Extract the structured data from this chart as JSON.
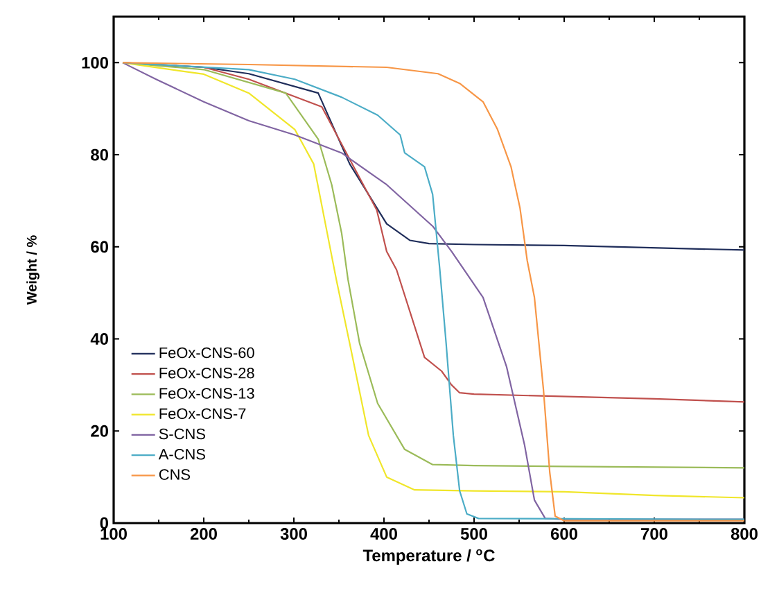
{
  "chart_data": {
    "type": "line",
    "xlabel": "Temperature / $^{o}$C",
    "ylabel": "Weight  / %",
    "xlim": [
      100,
      800
    ],
    "ylim": [
      0,
      110
    ],
    "xticks": [
      100,
      200,
      300,
      400,
      500,
      600,
      700,
      800
    ],
    "yticks": [
      0,
      20,
      40,
      60,
      80,
      100
    ],
    "grid": false,
    "legend": "bottom left",
    "marker": "none",
    "line_style": "solid",
    "series": [
      {
        "name": "FeOx-CNS-60",
        "color": "#1f2d5a",
        "x": [
          110,
          200,
          250,
          327,
          362,
          403,
          429,
          450,
          500,
          600,
          700,
          800
        ],
        "values": [
          100,
          99,
          97.6,
          93.4,
          78,
          65,
          61.4,
          60.7,
          60.5,
          60.3,
          59.8,
          59.3
        ]
      },
      {
        "name": "FeOx-CNS-28",
        "color": "#c0504d",
        "x": [
          110,
          200,
          250,
          331,
          392,
          403,
          414,
          445,
          464,
          475,
          484,
          500,
          600,
          700,
          800
        ],
        "values": [
          100,
          99,
          96.4,
          90.4,
          68,
          59,
          55,
          36,
          33,
          30,
          28.3,
          28,
          27.5,
          27,
          26.3
        ]
      },
      {
        "name": "FeOx-CNS-13",
        "color": "#9bbb59",
        "x": [
          110,
          200,
          291,
          327,
          342,
          353,
          360,
          373,
          393,
          423,
          454,
          500,
          600,
          800
        ],
        "values": [
          100,
          98.5,
          93.4,
          83.4,
          73.5,
          63,
          53,
          39,
          26,
          16,
          12.7,
          12.5,
          12.3,
          12
        ]
      },
      {
        "name": "FeOx-CNS-7",
        "color": "#f0e62a",
        "x": [
          110,
          200,
          250,
          301,
          322,
          337,
          347,
          362,
          383,
          403,
          434,
          500,
          600,
          700,
          800
        ],
        "values": [
          100,
          97.5,
          93.4,
          85.5,
          78,
          63,
          53,
          39,
          19,
          10,
          7.2,
          7,
          6.8,
          6,
          5.5
        ]
      },
      {
        "name": "S-CNS",
        "color": "#8064a2",
        "x": [
          110,
          147,
          200,
          250,
          301,
          353,
          403,
          454,
          475,
          510,
          536,
          556,
          567,
          579,
          600,
          800
        ],
        "values": [
          100,
          96.4,
          91.5,
          87.4,
          84.3,
          80.4,
          73.5,
          64.5,
          59,
          49,
          34,
          17,
          5,
          1,
          0.8,
          0.8
        ]
      },
      {
        "name": "A-CNS",
        "color": "#4bacc6",
        "x": [
          110,
          250,
          301,
          353,
          393,
          418,
          423,
          445,
          454,
          462,
          469,
          477,
          484,
          492,
          505,
          800
        ],
        "values": [
          100,
          98.5,
          96.4,
          92.5,
          88.6,
          84.3,
          80.4,
          77.4,
          71.4,
          55,
          39,
          19,
          7,
          2,
          1,
          0.8
        ]
      },
      {
        "name": "CNS",
        "color": "#f79646",
        "x": [
          110,
          250,
          403,
          460,
          484,
          510,
          526,
          541,
          551,
          559,
          567,
          577,
          584,
          590,
          600,
          800
        ],
        "values": [
          100,
          99.6,
          99,
          97.6,
          95.5,
          91.5,
          85.5,
          77.4,
          68.4,
          57,
          49,
          29,
          11,
          1.5,
          0.5,
          0.5
        ]
      }
    ]
  }
}
